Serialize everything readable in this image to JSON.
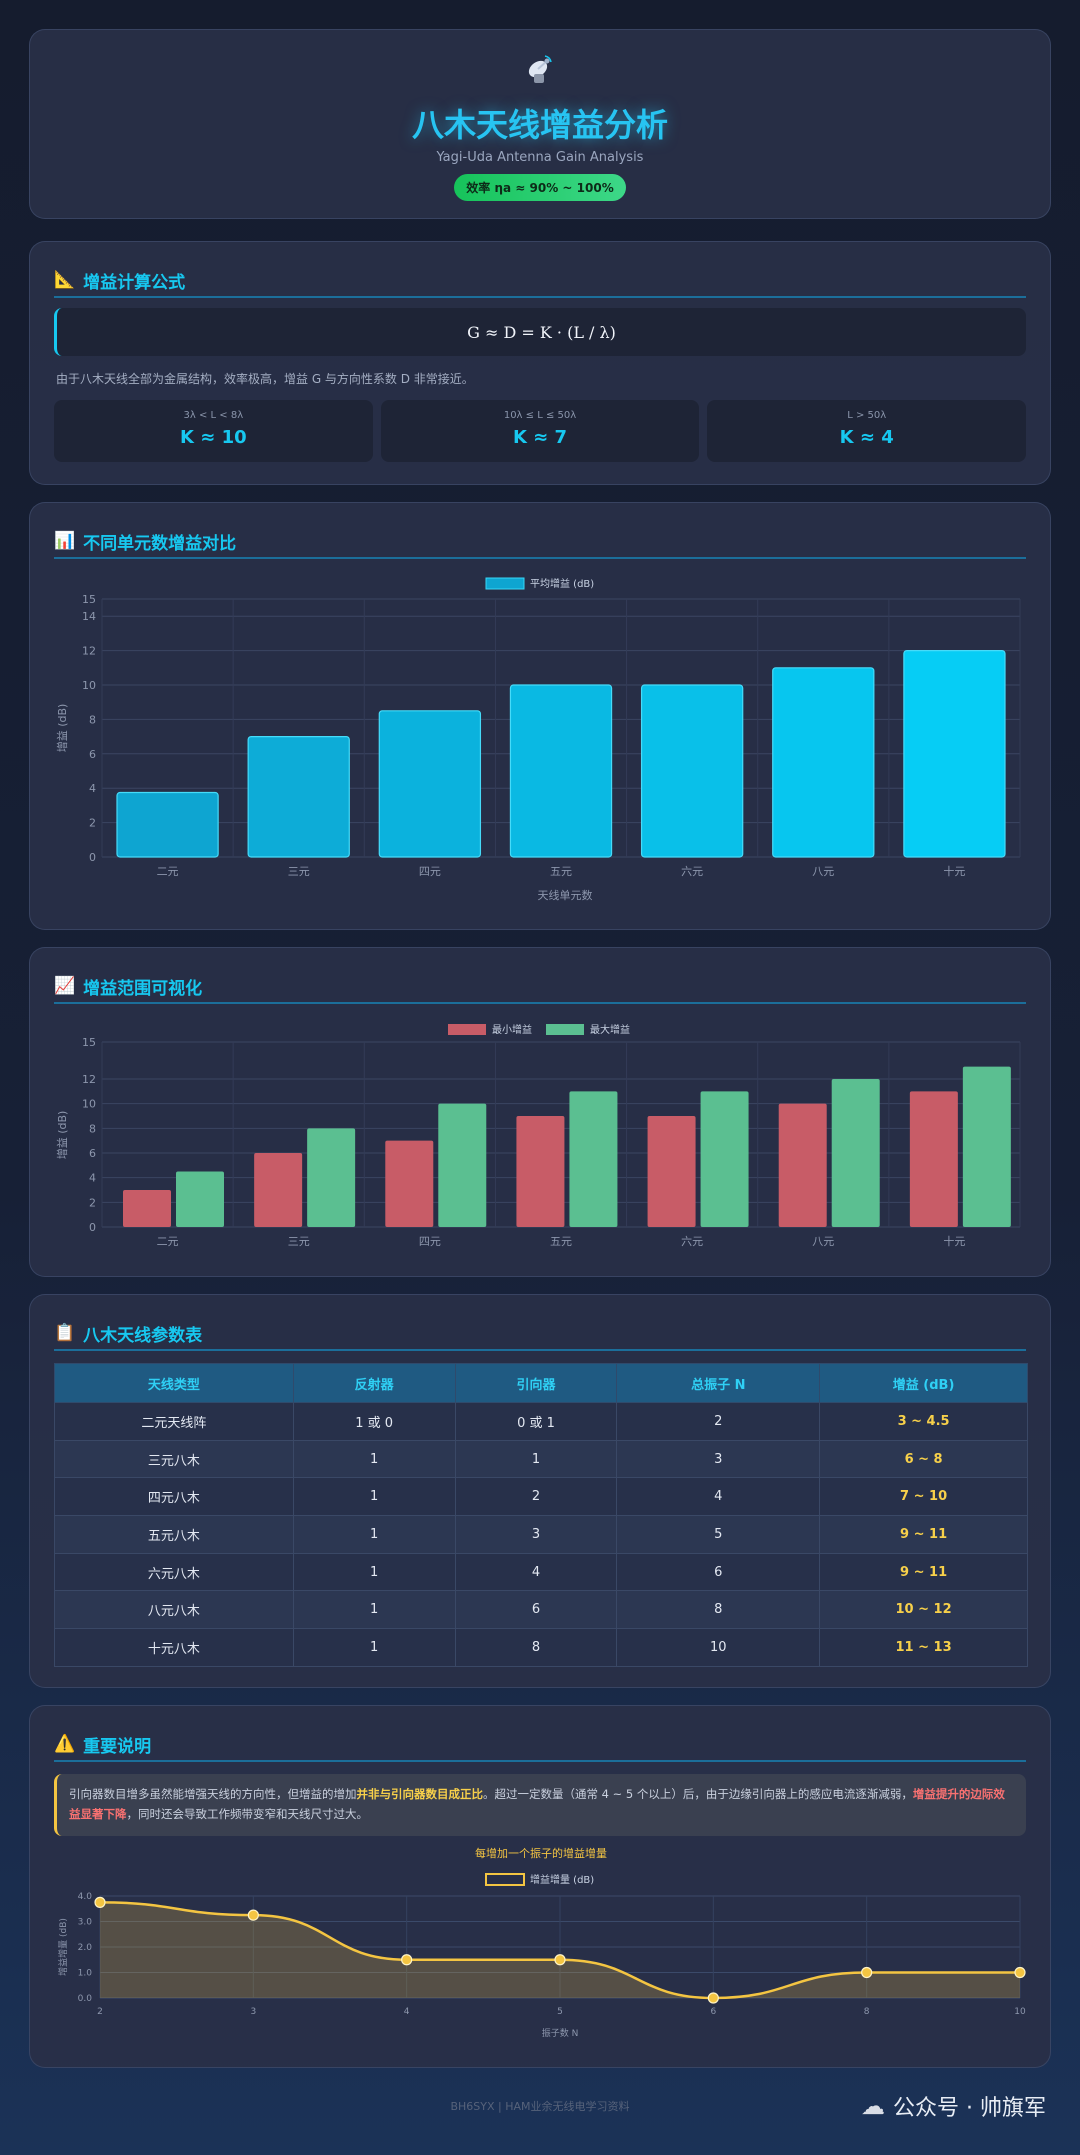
{
  "header": {
    "icon": "satellite-dish-icon",
    "title": "八木天线增益分析",
    "subtitle": "Yagi-Uda Antenna Gain Analysis",
    "badge": "效率 ηa ≈ 90% ~ 100%"
  },
  "formula": {
    "section_title": "增益计算公式",
    "equation": "G ≈ D = K · (L / λ)",
    "description": "由于八木天线全部为金属结构，效率极高，增益 G 与方向性系数 D 非常接近。",
    "cases": [
      {
        "condition": "3λ < L < 8λ",
        "value": "K ≈ 10"
      },
      {
        "condition": "10λ ≤ L ≤ 50λ",
        "value": "K ≈ 7"
      },
      {
        "condition": "L > 50λ",
        "value": "K ≈ 4"
      }
    ]
  },
  "gain_chart": {
    "section_title": "不同单元数增益对比",
    "legend": "平均增益 (dB)",
    "xlabel": "天线单元数",
    "ylabel": "增益 (dB)"
  },
  "range_chart": {
    "section_title": "增益范围可视化",
    "legend_min": "最小增益",
    "legend_max": "最大增益",
    "ylabel": "增益 (dB)"
  },
  "table": {
    "section_title": "八木天线参数表",
    "headers": [
      "天线类型",
      "反射器",
      "引向器",
      "总振子 N",
      "增益 (dB)"
    ],
    "rows": [
      [
        "二元天线阵",
        "1 或 0",
        "0 或 1",
        "2",
        "3 ~ 4.5"
      ],
      [
        "三元八木",
        "1",
        "1",
        "3",
        "6 ~ 8"
      ],
      [
        "四元八木",
        "1",
        "2",
        "4",
        "7 ~ 10"
      ],
      [
        "五元八木",
        "1",
        "3",
        "5",
        "9 ~ 11"
      ],
      [
        "六元八木",
        "1",
        "4",
        "6",
        "9 ~ 11"
      ],
      [
        "八元八木",
        "1",
        "6",
        "8",
        "10 ~ 12"
      ],
      [
        "十元八木",
        "1",
        "8",
        "10",
        "11 ~ 13"
      ]
    ]
  },
  "notes": {
    "section_title": "重要说明",
    "text_1": "引向器数目增多虽然能增强天线的方向性，但增益的增加",
    "highlight_1": "并非与引向器数目成正比",
    "text_2": "。超过一定数量（通常 4 ~ 5 个以上）后，由于边缘引向器上的感应电流逐渐减弱，",
    "highlight_2": "增益提升的边际效益显著下降",
    "text_3": "，同时还会导致工作频带变窄和天线尺寸过大。"
  },
  "increment_chart": {
    "title": "每增加一个振子的增益增量",
    "legend": "增益增量 (dB)",
    "xlabel": "振子数 N",
    "ylabel": "增益增量 (dB)"
  },
  "footer": {
    "credit": "BH6SYX | HAM业余无线电学习资料",
    "watermark": "公众号 · 帅旗军"
  },
  "chart_data": [
    {
      "type": "bar",
      "title": "不同单元数增益对比",
      "categories": [
        "二元",
        "三元",
        "四元",
        "五元",
        "六元",
        "八元",
        "十元"
      ],
      "series": [
        {
          "name": "平均增益 (dB)",
          "values": [
            3.75,
            7,
            8.5,
            10,
            10,
            11,
            12
          ]
        }
      ],
      "xlabel": "天线单元数",
      "ylabel": "增益 (dB)",
      "ylim": [
        0,
        15
      ],
      "yticks": [
        0,
        2,
        4,
        6,
        8,
        10,
        12,
        14,
        15
      ],
      "colors": [
        "#0ea5d1",
        "#06cdf5"
      ]
    },
    {
      "type": "bar",
      "title": "增益范围可视化",
      "categories": [
        "二元",
        "三元",
        "四元",
        "五元",
        "六元",
        "八元",
        "十元"
      ],
      "series": [
        {
          "name": "最小增益",
          "values": [
            3,
            6,
            7,
            9,
            9,
            10,
            11
          ]
        },
        {
          "name": "最大增益",
          "values": [
            4.5,
            8,
            10,
            11,
            11,
            12,
            13
          ]
        }
      ],
      "xlabel": "",
      "ylabel": "增益 (dB)",
      "ylim": [
        0,
        15
      ],
      "yticks": [
        0,
        2,
        4,
        6,
        8,
        10,
        12,
        15
      ],
      "colors": [
        "#c85c67",
        "#5bbf91"
      ]
    },
    {
      "type": "line",
      "title": "每增加一个振子的增益增量",
      "x": [
        "2",
        "3",
        "4",
        "5",
        "6",
        "8",
        "10"
      ],
      "series": [
        {
          "name": "增益增量 (dB)",
          "values": [
            3.75,
            3.25,
            1.5,
            1.5,
            0,
            1,
            1
          ]
        }
      ],
      "xlabel": "振子数 N",
      "ylabel": "增益增量 (dB)",
      "ylim": [
        0,
        4
      ],
      "yticks": [
        0,
        1,
        2,
        3,
        4
      ],
      "colors": [
        "#f4c542"
      ]
    }
  ],
  "colors": {
    "accent": "#17c8f0",
    "title_glow": "#27c4f2",
    "badge_green": "#22c55e",
    "highlight_yellow": "#f7d04a",
    "highlight_red": "#f87171"
  }
}
